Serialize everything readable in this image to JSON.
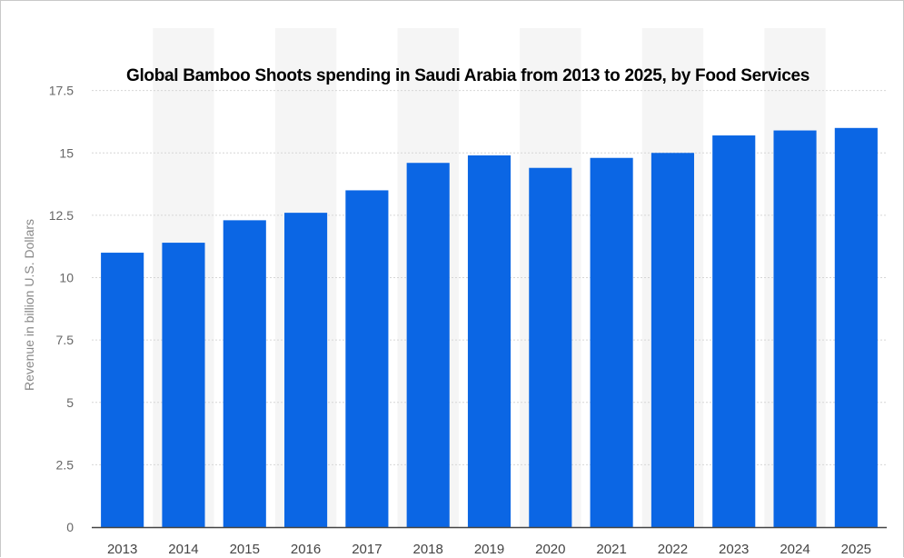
{
  "chart_data": {
    "type": "bar",
    "title": "Global Bamboo Shoots spending in Saudi Arabia from 2013 to 2025, by Food Services",
    "ylabel": "Revenue in billion U.S. Dollars",
    "xlabel": "",
    "categories": [
      "2013",
      "2014",
      "2015",
      "2016",
      "2017",
      "2018",
      "2019",
      "2020",
      "2021",
      "2022",
      "2023",
      "2024",
      "2025"
    ],
    "values": [
      11.0,
      11.4,
      12.3,
      12.6,
      13.5,
      14.6,
      14.9,
      14.4,
      14.8,
      15.0,
      15.7,
      15.9,
      16.0
    ],
    "ylim": [
      0,
      20
    ],
    "yticks": [
      "0",
      "2.5",
      "5",
      "7.5",
      "10",
      "12.5",
      "15",
      "17.5"
    ],
    "grid": true,
    "bar_color": "#0b66e4",
    "band_color": "#f5f5f5"
  }
}
